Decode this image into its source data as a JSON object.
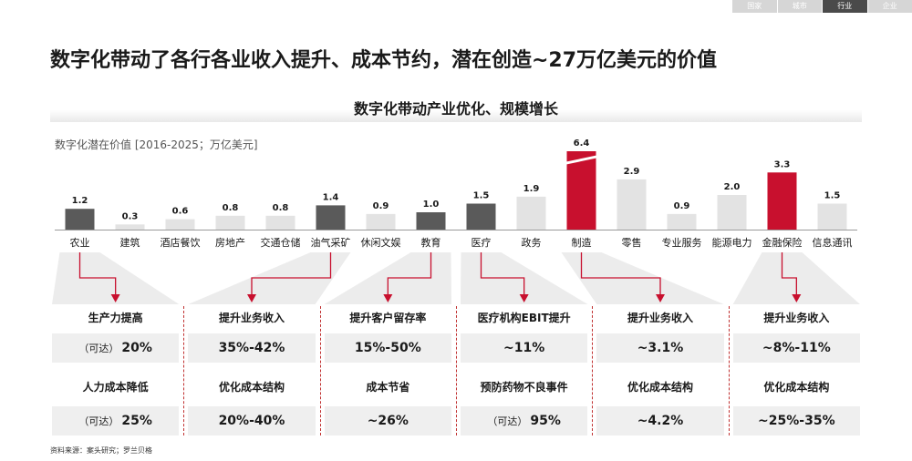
{
  "nav": [
    "国家",
    "城市",
    "行业",
    "企业"
  ],
  "nav_active": 2,
  "title": "数字化带动了各行各业收入提升、成本节约，潜在创造~27万亿美元的价值",
  "subtitle": "数字化带动产业优化、规模增长",
  "source": "资料来源：案头研究；罗兰贝格",
  "colors": {
    "dark": "#5a5a5a",
    "light": "#e3e3e3",
    "red": "#c8102e",
    "arrow": "#c8102e"
  },
  "chart_data": {
    "type": "bar",
    "title": "数字化带动产业优化、规模增长",
    "ylabel": "数字化潜在价值 [2016-2025；万亿美元]",
    "categories": [
      "农业",
      "建筑",
      "酒店餐饮",
      "房地产",
      "交通仓储",
      "油气采矿",
      "休闲文娱",
      "教育",
      "医疗",
      "政务",
      "制造",
      "零售",
      "专业服务",
      "能源电力",
      "金融保险",
      "信息通讯"
    ],
    "values": [
      1.2,
      0.3,
      0.6,
      0.8,
      0.8,
      1.4,
      0.9,
      1.0,
      1.5,
      1.9,
      6.4,
      2.9,
      0.9,
      2.0,
      3.3,
      1.5
    ],
    "value_labels": [
      "1.2",
      "0.3",
      "0.6",
      "0.8",
      "0.8",
      "1.4",
      "0.9",
      "1.0",
      "1.5",
      "1.9",
      "6.4",
      "2.9",
      "0.9",
      "2.0",
      "3.3",
      "1.5"
    ],
    "bar_colors": [
      "dark",
      "light",
      "light",
      "light",
      "light",
      "dark",
      "light",
      "dark",
      "dark",
      "light",
      "red",
      "light",
      "light",
      "light",
      "red",
      "light"
    ],
    "axis_break_category": "制造"
  },
  "panels": [
    {
      "category": "农业",
      "rows": [
        {
          "label": "生产力提高",
          "value": "20%",
          "prefix": "（可达）"
        },
        {
          "label": "人力成本降低",
          "value": "25%",
          "prefix": "（可达）"
        }
      ]
    },
    {
      "category": "油气采矿",
      "rows": [
        {
          "label": "提升业务收入",
          "value": "35%-42%",
          "prefix": ""
        },
        {
          "label": "优化成本结构",
          "value": "20%-40%",
          "prefix": ""
        }
      ]
    },
    {
      "category": "教育",
      "rows": [
        {
          "label": "提升客户留存率",
          "value": "15%-50%",
          "prefix": ""
        },
        {
          "label": "成本节省",
          "value": "~26%",
          "prefix": ""
        }
      ]
    },
    {
      "category": "医疗",
      "rows": [
        {
          "label": "医疗机构EBIT提升",
          "value": "~11%",
          "prefix": ""
        },
        {
          "label": "预防药物不良事件",
          "value": "95%",
          "prefix": "（可达）"
        }
      ]
    },
    {
      "category": "制造",
      "rows": [
        {
          "label": "提升业务收入",
          "value": "~3.1%",
          "prefix": ""
        },
        {
          "label": "优化成本结构",
          "value": "~4.2%",
          "prefix": ""
        }
      ]
    },
    {
      "category": "金融保险",
      "rows": [
        {
          "label": "提升业务收入",
          "value": "~8%-11%",
          "prefix": ""
        },
        {
          "label": "优化成本结构",
          "value": "~25%-35%",
          "prefix": ""
        }
      ]
    }
  ]
}
